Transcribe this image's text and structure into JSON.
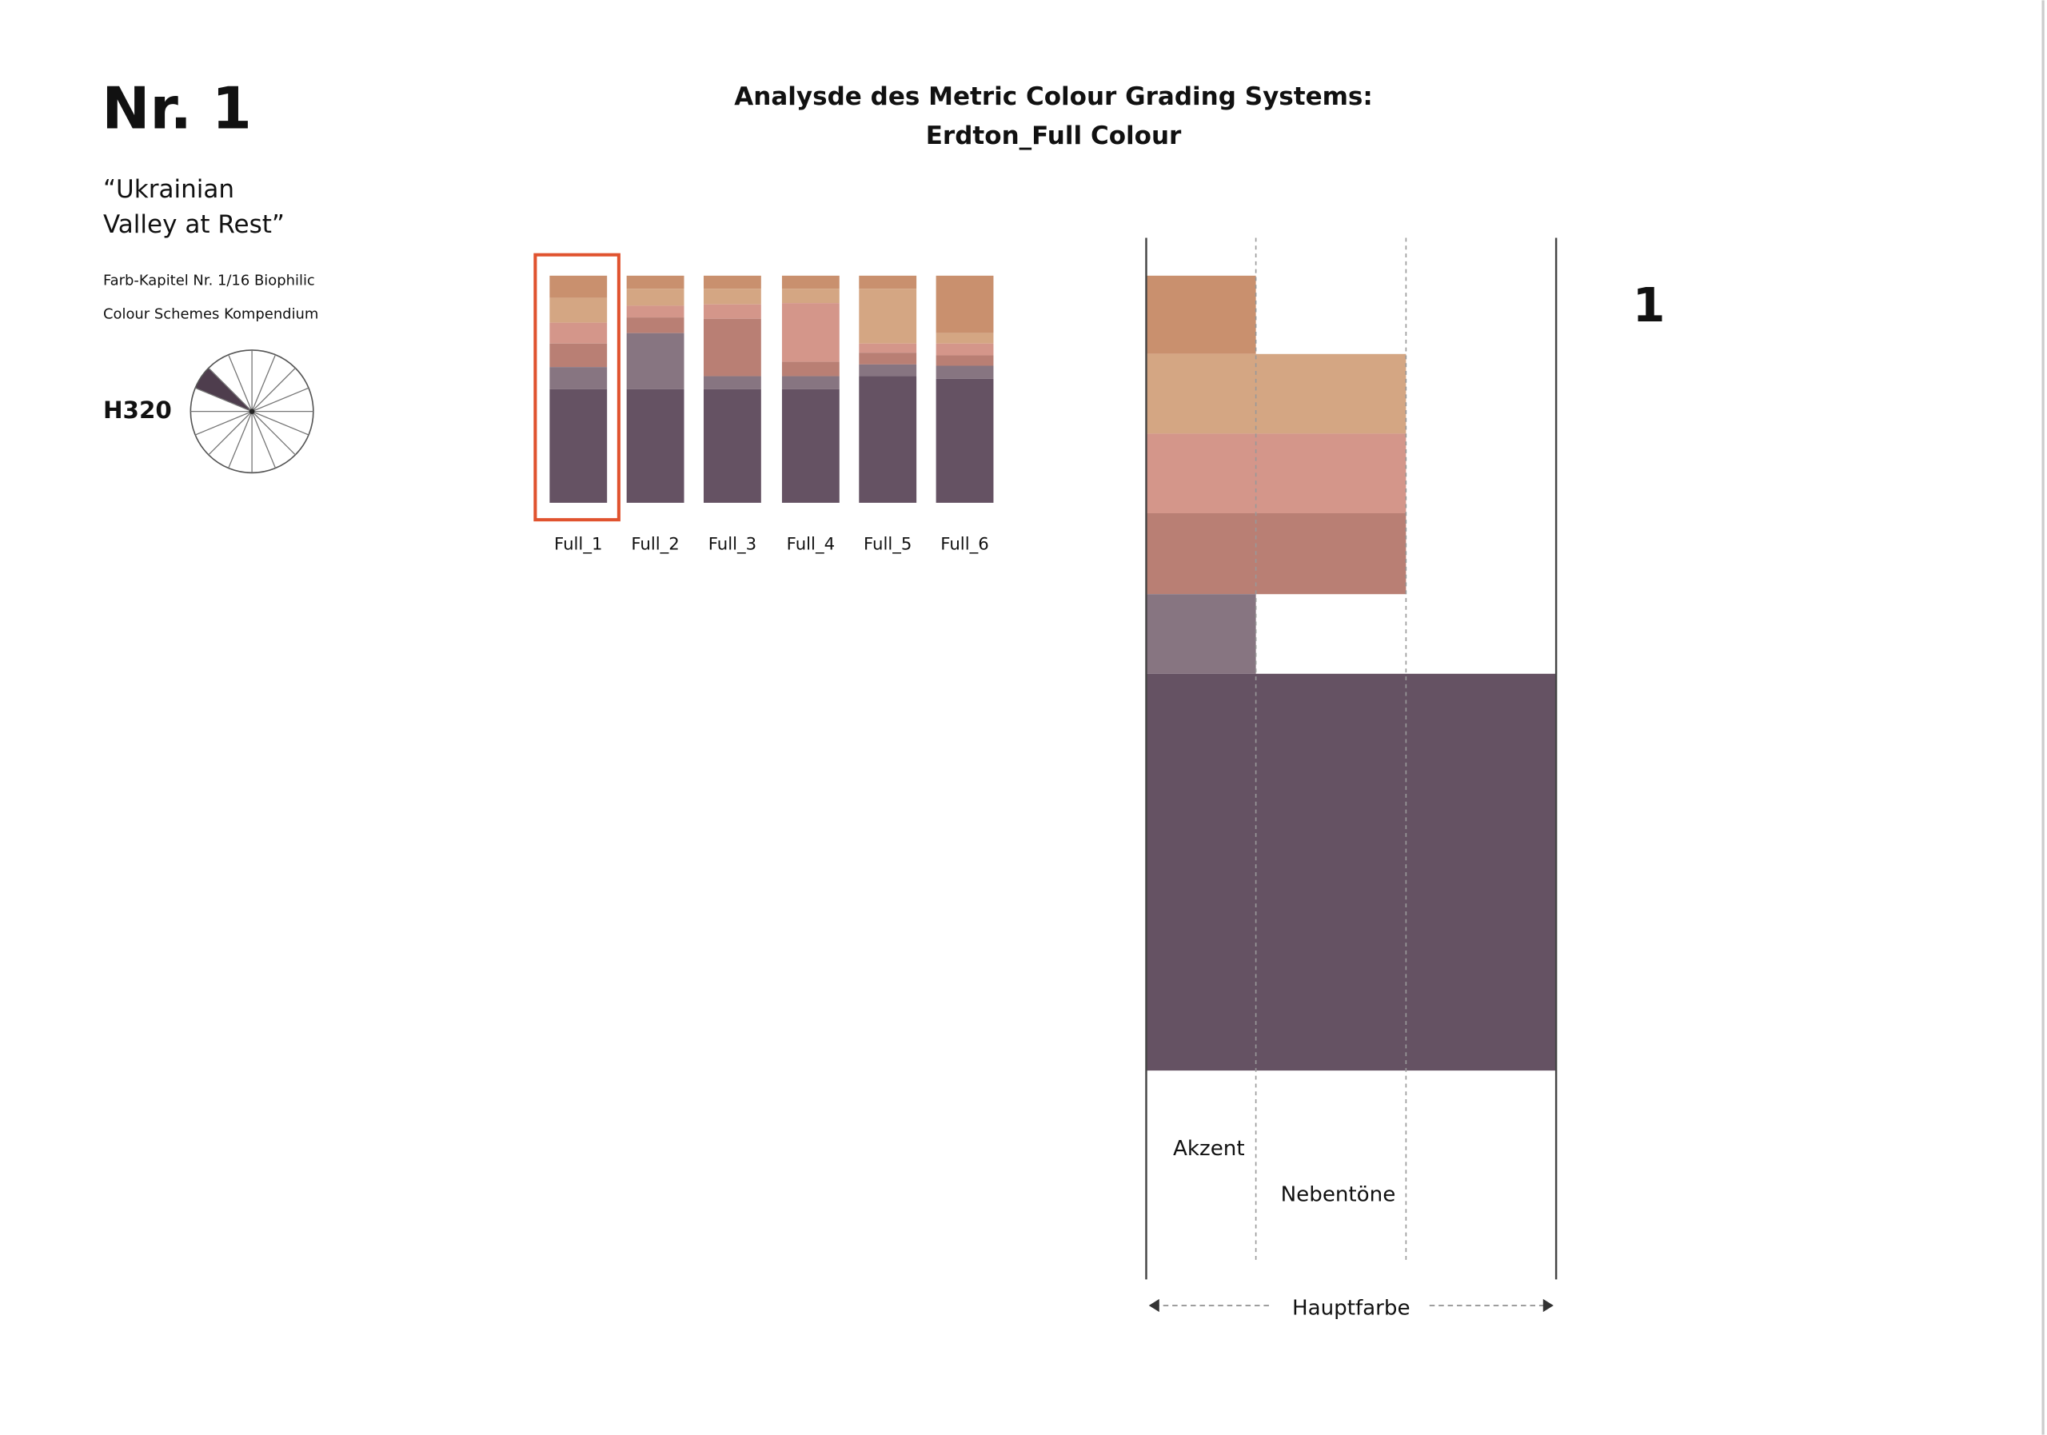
{
  "header": {
    "number": "Nr. 1",
    "title_lines": [
      "“Ukrainian",
      "Valley at Rest”"
    ],
    "subtitle_lines": [
      "Farb-Kapitel Nr. 1/16 Biophilic",
      "Colour Schemes Kompendium"
    ],
    "hue": "H320"
  },
  "heading": [
    "Analysde des Metric Colour Grading Systems:",
    "Erdton_Full Colour"
  ],
  "swatches": [
    "Full_1",
    "Full_2",
    "Full_3",
    "Full_4",
    "Full_5",
    "Full_6"
  ],
  "detail": {
    "number": "1",
    "labels": {
      "accent": "Akzent",
      "secondary": "Nebentöne",
      "main": "Hauptfarbe"
    }
  }
}
